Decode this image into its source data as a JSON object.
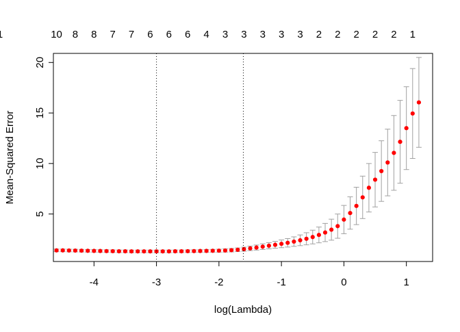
{
  "chart_data": {
    "type": "scatter",
    "xlabel": "log(Lambda)",
    "ylabel": "Mean-Squared Error",
    "xlim": [
      -4.65,
      1.42
    ],
    "ylim": [
      0.3,
      20.9
    ],
    "x_ticks": [
      -4,
      -3,
      -2,
      -1,
      0,
      1
    ],
    "y_ticks": [
      5,
      10,
      15,
      20
    ],
    "top_axis_labels": [
      "10",
      "8",
      "8",
      "7",
      "7",
      "6",
      "6",
      "6",
      "4",
      "3",
      "3",
      "3",
      "3",
      "3",
      "2",
      "2",
      "2",
      "2",
      "2",
      "1",
      "1"
    ],
    "vlines": [
      -3.0,
      -1.61
    ],
    "point_color": "#ff0000",
    "errorbar_color": "#a0a0a0",
    "series": [
      {
        "x": [
          -4.6,
          -4.5,
          -4.4,
          -4.3,
          -4.2,
          -4.1,
          -4.0,
          -3.9,
          -3.8,
          -3.7,
          -3.6,
          -3.5,
          -3.4,
          -3.3,
          -3.2,
          -3.1,
          -3.0,
          -2.9,
          -2.8,
          -2.7,
          -2.6,
          -2.5,
          -2.4,
          -2.3,
          -2.2,
          -2.1,
          -2.0,
          -1.9,
          -1.8,
          -1.7,
          -1.6,
          -1.5,
          -1.4,
          -1.3,
          -1.2,
          -1.1,
          -1.0,
          -0.9,
          -0.8,
          -0.7,
          -0.6,
          -0.5,
          -0.4,
          -0.3,
          -0.2,
          -0.1,
          0.0,
          0.1,
          0.2,
          0.3,
          0.4,
          0.5,
          0.6,
          0.7,
          0.8,
          0.9,
          1.0,
          1.1,
          1.2
        ],
        "y": [
          1.4,
          1.4,
          1.39,
          1.38,
          1.37,
          1.36,
          1.35,
          1.34,
          1.33,
          1.32,
          1.31,
          1.31,
          1.3,
          1.3,
          1.3,
          1.3,
          1.3,
          1.3,
          1.3,
          1.31,
          1.31,
          1.32,
          1.33,
          1.34,
          1.35,
          1.36,
          1.37,
          1.39,
          1.42,
          1.46,
          1.52,
          1.6,
          1.68,
          1.77,
          1.86,
          1.95,
          2.05,
          2.15,
          2.27,
          2.4,
          2.55,
          2.72,
          2.93,
          3.17,
          3.45,
          3.8,
          4.45,
          5.1,
          5.8,
          6.65,
          7.6,
          8.4,
          9.25,
          10.1,
          11.05,
          12.15,
          13.5,
          14.95,
          16.05
        ],
        "err": [
          0.13,
          0.13,
          0.13,
          0.13,
          0.13,
          0.13,
          0.13,
          0.13,
          0.13,
          0.13,
          0.13,
          0.13,
          0.13,
          0.13,
          0.13,
          0.13,
          0.13,
          0.13,
          0.13,
          0.13,
          0.13,
          0.13,
          0.13,
          0.13,
          0.14,
          0.14,
          0.15,
          0.16,
          0.17,
          0.18,
          0.2,
          0.22,
          0.25,
          0.28,
          0.31,
          0.34,
          0.38,
          0.42,
          0.47,
          0.53,
          0.6,
          0.68,
          0.78,
          0.9,
          1.04,
          1.2,
          1.4,
          1.6,
          1.85,
          2.1,
          2.4,
          2.7,
          3.0,
          3.3,
          3.7,
          4.1,
          4.1,
          4.45,
          4.45
        ]
      }
    ]
  }
}
